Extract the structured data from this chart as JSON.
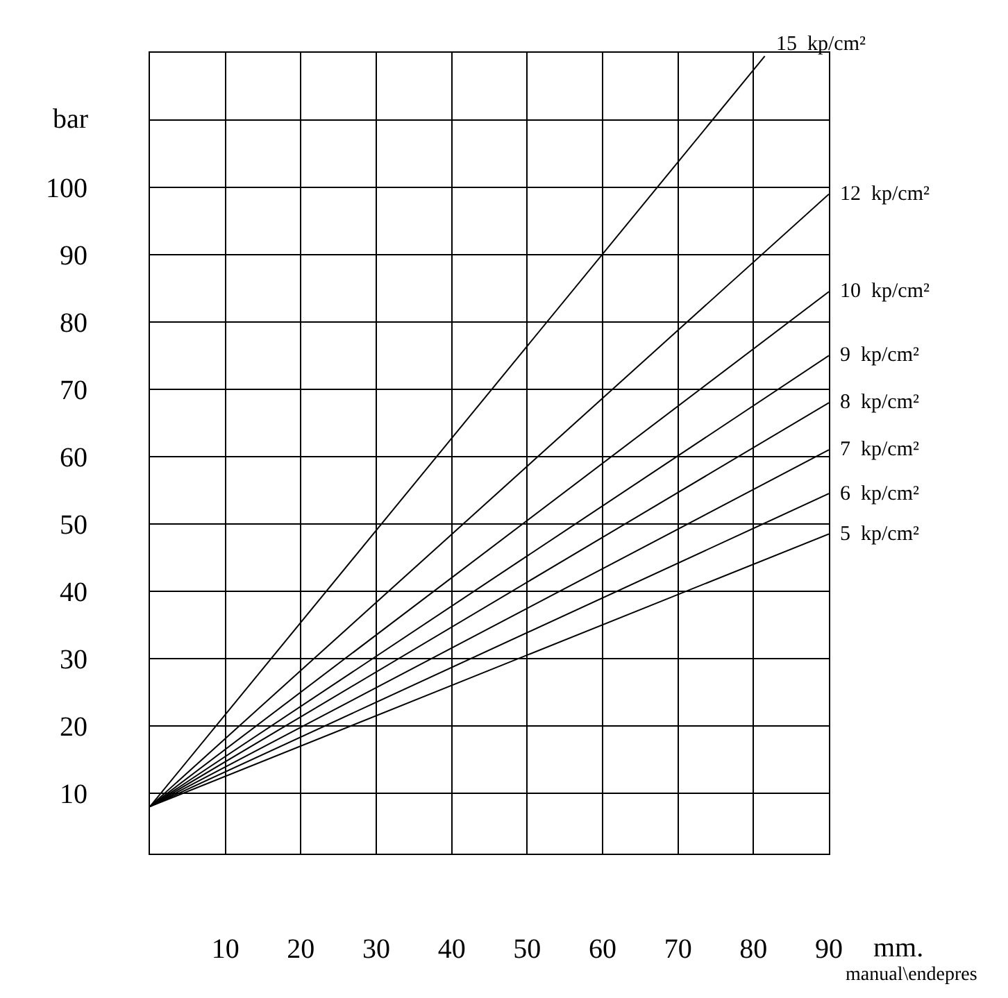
{
  "chart_data": {
    "type": "line",
    "xlabel": "mm.",
    "ylabel": "bar",
    "xlim": [
      0,
      90
    ],
    "ylim": [
      1,
      120
    ],
    "xticks": [
      {
        "value": 0,
        "label": null
      },
      10,
      20,
      30,
      40,
      50,
      60,
      70,
      80,
      90
    ],
    "yticks": [
      10,
      20,
      30,
      40,
      50,
      60,
      70,
      80,
      90,
      100,
      {
        "value": 110,
        "label": null
      }
    ],
    "grid": true,
    "legend": false,
    "marker": "none",
    "line_style": "solid",
    "annotations": [
      "manual\\endepres"
    ],
    "series": [
      {
        "name": "15  kp/cm²",
        "color": "#000000",
        "x": [
          0,
          81.5
        ],
        "values": [
          8,
          119.5
        ]
      },
      {
        "name": "12  kp/cm²",
        "color": "#000000",
        "x": [
          0,
          90
        ],
        "values": [
          8,
          99
        ]
      },
      {
        "name": "10  kp/cm²",
        "color": "#000000",
        "x": [
          0,
          90
        ],
        "values": [
          8,
          84.5
        ]
      },
      {
        "name": "9  kp/cm²",
        "color": "#000000",
        "x": [
          0,
          90
        ],
        "values": [
          8,
          75
        ]
      },
      {
        "name": "8  kp/cm²",
        "color": "#000000",
        "x": [
          0,
          90
        ],
        "values": [
          8,
          68
        ]
      },
      {
        "name": "7  kp/cm²",
        "color": "#000000",
        "x": [
          0,
          90
        ],
        "values": [
          8,
          61
        ]
      },
      {
        "name": "6  kp/cm²",
        "color": "#000000",
        "x": [
          0,
          90
        ],
        "values": [
          8,
          54.5
        ]
      },
      {
        "name": "5  kp/cm²",
        "color": "#000000",
        "x": [
          0,
          90
        ],
        "values": [
          8,
          48.5
        ]
      }
    ]
  }
}
